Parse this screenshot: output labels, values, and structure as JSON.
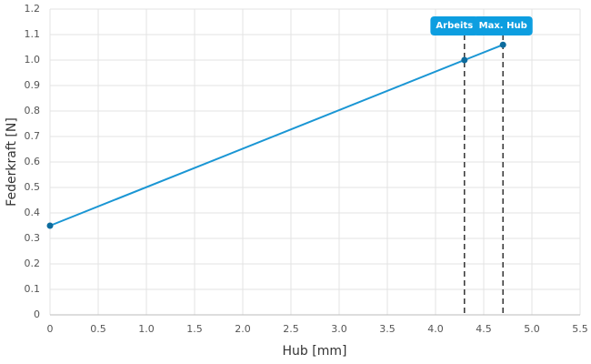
{
  "chart_data": {
    "type": "line",
    "x_label": "Hub [mm]",
    "y_label": "Federkraft [N]",
    "x": [
      0,
      4.3,
      4.7
    ],
    "series": [
      {
        "color": "#1a96d4",
        "values": [
          0.35,
          1.0,
          1.06
        ]
      }
    ],
    "marker_color": "#0d6c9e",
    "xlim": [
      0,
      5.5
    ],
    "xticks": [
      0,
      0.5,
      {
        "value": 1,
        "label": "1.0"
      },
      1.5,
      {
        "value": 2,
        "label": "2.0"
      },
      2.5,
      {
        "value": 3,
        "label": "3.0"
      },
      3.5,
      {
        "value": 4,
        "label": "4.0"
      },
      4.5,
      {
        "value": 5,
        "label": "5.0"
      },
      5.5
    ],
    "ylim": [
      0,
      1.2
    ],
    "yticks": [
      0,
      0.1,
      0.2,
      0.3,
      0.4,
      0.5,
      0.6,
      0.7,
      0.8,
      0.9,
      {
        "value": 1,
        "label": "1.0"
      },
      1.1,
      1.2
    ],
    "grid": true,
    "annotations": [
      {
        "x": 4.3,
        "label": "Arbeits"
      },
      {
        "x": 4.7,
        "label": "Max. Hub"
      }
    ],
    "annotation_color": "#0d9ee0"
  }
}
